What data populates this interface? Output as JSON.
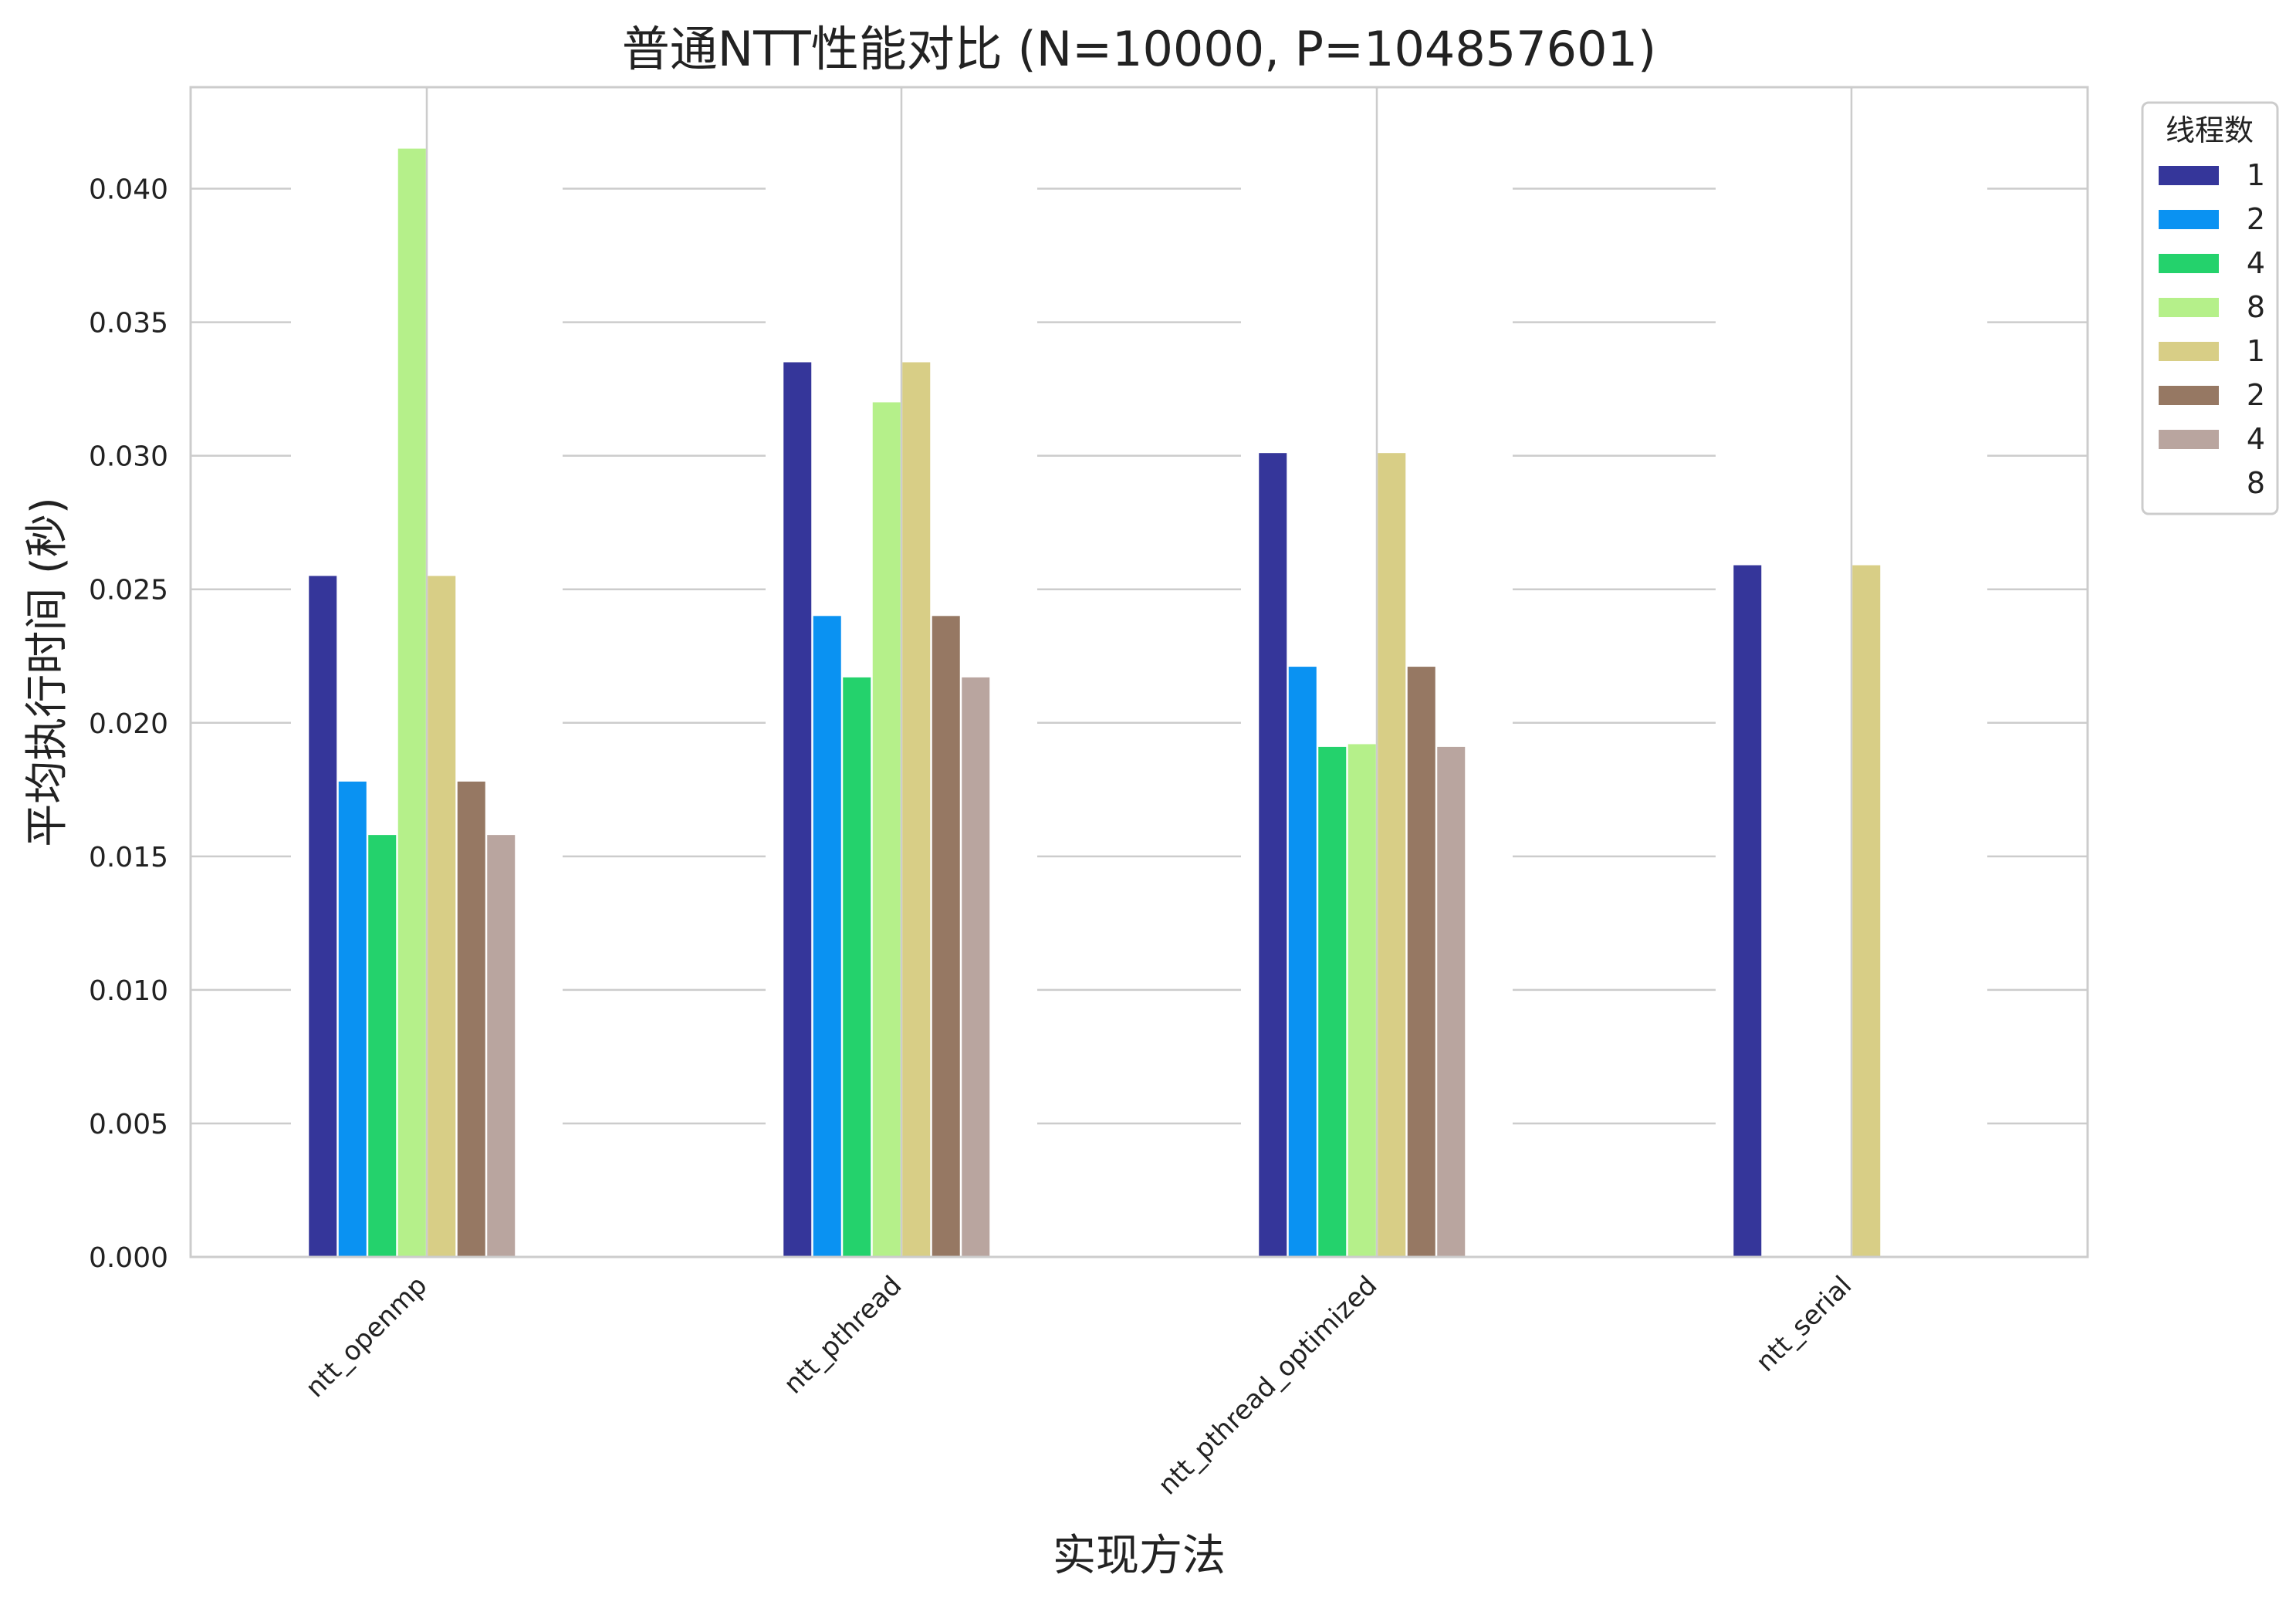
{
  "chart_data": {
    "type": "bar",
    "title": "普通NTT性能对比 (N=10000, P=104857601)",
    "xlabel": "实现方法",
    "ylabel": "平均执行时间 (秒)",
    "categories": [
      "ntt_openmp",
      "ntt_pthread",
      "ntt_pthread_optimized",
      "ntt_serial"
    ],
    "ylim": [
      0,
      0.0438
    ],
    "yticks": [
      "0.000",
      "0.005",
      "0.010",
      "0.015",
      "0.020",
      "0.025",
      "0.030",
      "0.035",
      "0.040"
    ],
    "ytick_values": [
      0,
      0.005,
      0.01,
      0.015,
      0.02,
      0.025,
      0.03,
      0.035,
      0.04
    ],
    "grid": true,
    "legend": {
      "title": "线程数",
      "placement": "outside-top-right"
    },
    "series": [
      {
        "name": "1",
        "color": "#35369a",
        "values": [
          0.0255,
          0.0335,
          0.0301,
          0.0259
        ]
      },
      {
        "name": "2",
        "color": "#0a92f2",
        "values": [
          0.0178,
          0.024,
          0.0221,
          null
        ]
      },
      {
        "name": "4",
        "color": "#24d26c",
        "values": [
          0.0158,
          0.0217,
          0.0191,
          null
        ]
      },
      {
        "name": "8",
        "color": "#b5f08a",
        "values": [
          0.0415,
          0.032,
          0.0192,
          null
        ]
      },
      {
        "name": "1",
        "color": "#d8ce86",
        "values": [
          0.0255,
          0.0335,
          0.0301,
          0.0259
        ]
      },
      {
        "name": "2",
        "color": "#967863",
        "values": [
          0.0178,
          0.024,
          0.0221,
          null
        ]
      },
      {
        "name": "4",
        "color": "#b9a59f",
        "values": [
          0.0158,
          0.0217,
          0.0191,
          null
        ]
      },
      {
        "name": "8",
        "color": "#ffffff",
        "values": [
          null,
          null,
          null,
          null
        ]
      }
    ]
  }
}
